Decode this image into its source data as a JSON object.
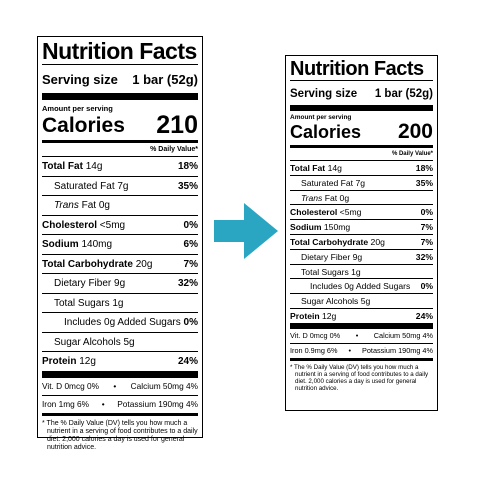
{
  "accent_color": "#2aa6c2",
  "arrow_icon": "right-arrow-icon",
  "labels": [
    {
      "title": "Nutrition Facts",
      "serving_label": "Serving size",
      "serving_value": "1 bar (52g)",
      "amount_per_serving": "Amount per serving",
      "calories_label": "Calories",
      "calories_value": "210",
      "dv_header": "% Daily Value*",
      "total_fat": {
        "name": "Total Fat",
        "amount": "14g",
        "dv": "18%"
      },
      "saturated_fat": {
        "name": "Saturated Fat 7g",
        "dv": "35%"
      },
      "trans_fat": {
        "name": "Trans",
        "amount": "Fat 0g"
      },
      "cholesterol": {
        "name": "Cholesterol",
        "amount": "<5mg",
        "dv": "0%"
      },
      "sodium": {
        "name": "Sodium",
        "amount": "140mg",
        "dv": "6%"
      },
      "total_carb": {
        "name": "Total Carbohydrate",
        "amount": "20g",
        "dv": "7%"
      },
      "fiber": {
        "name": "Dietary Fiber 9g",
        "dv": "32%"
      },
      "total_sugars": {
        "name": "Total Sugars 1g"
      },
      "added_sugars": {
        "name": "Includes 0g Added Sugars",
        "dv": "0%"
      },
      "sugar_alcohols": {
        "name": "Sugar Alcohols 5g"
      },
      "protein": {
        "name": "Protein",
        "amount": "12g",
        "dv": "24%"
      },
      "vit_row1": {
        "left": "Vit. D 0mcg 0%",
        "right": "Calcium 50mg 4%"
      },
      "vit_row2": {
        "left": "Iron 1mg 6%",
        "right": "Potassium 190mg 4%"
      },
      "footnote": "* The % Daily Value (DV) tells you how much a nutrient in a serving of food contributes to a daily diet. 2,000 calories a day is used for general nutrition advice."
    },
    {
      "title": "Nutrition Facts",
      "serving_label": "Serving size",
      "serving_value": "1 bar (52g)",
      "amount_per_serving": "Amount per serving",
      "calories_label": "Calories",
      "calories_value": "200",
      "dv_header": "% Daily Value*",
      "total_fat": {
        "name": "Total Fat",
        "amount": "14g",
        "dv": "18%"
      },
      "saturated_fat": {
        "name": "Saturated Fat 7g",
        "dv": "35%"
      },
      "trans_fat": {
        "name": "Trans",
        "amount": "Fat 0g"
      },
      "cholesterol": {
        "name": "Cholesterol",
        "amount": "<5mg",
        "dv": "0%"
      },
      "sodium": {
        "name": "Sodium",
        "amount": "150mg",
        "dv": "7%"
      },
      "total_carb": {
        "name": "Total Carbohydrate",
        "amount": "20g",
        "dv": "7%"
      },
      "fiber": {
        "name": "Dietary Fiber 9g",
        "dv": "32%"
      },
      "total_sugars": {
        "name": "Total Sugars 1g"
      },
      "added_sugars": {
        "name": "Includes 0g Added Sugars",
        "dv": "0%"
      },
      "sugar_alcohols": {
        "name": "Sugar Alcohols 5g"
      },
      "protein": {
        "name": "Protein",
        "amount": "12g",
        "dv": "24%"
      },
      "vit_row1": {
        "left": "Vit. D 0mcg 0%",
        "right": "Calcium 50mg 4%"
      },
      "vit_row2": {
        "left": "Iron 0.9mg 6%",
        "right": "Potassium 190mg 4%"
      },
      "footnote": "* The % Daily Value (DV) tells you how much a nutrient in a serving of food contributes to a daily diet. 2,000 calories a day is used for general nutrition advice."
    }
  ]
}
